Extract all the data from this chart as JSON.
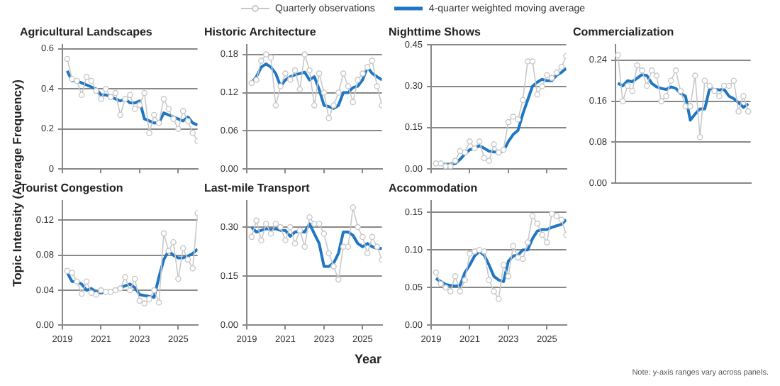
{
  "chart_data": [
    {
      "type": "line",
      "title": "Agricultural Landscapes",
      "ylabel": "Topic Intensity (Average Frequency)",
      "legend": "top",
      "grid": "y",
      "tick_labels": "y",
      "x": [
        2019.25,
        2019.5,
        2019.75,
        2020,
        2020.25,
        2020.5,
        2020.75,
        2021,
        2021.25,
        2021.5,
        2021.75,
        2022,
        2022.25,
        2022.5,
        2022.75,
        2023,
        2023.25,
        2023.5,
        2023.75,
        2024,
        2024.25,
        2024.5,
        2024.75,
        2025,
        2025.25,
        2025.5,
        2025.75,
        2026
      ],
      "xlim": [
        2019,
        2026
      ],
      "xticks": [
        2019,
        2021,
        2023,
        2025
      ],
      "ylim": [
        0,
        0.62
      ],
      "yticks": [
        0,
        0.2,
        0.4,
        0.6
      ],
      "series": [
        {
          "name": "Quarterly observations",
          "color": "#c8c8c8",
          "marker": "circle",
          "values": [
            0.55,
            0.45,
            0.44,
            0.37,
            0.46,
            0.44,
            0.39,
            0.35,
            0.4,
            0.36,
            0.38,
            0.27,
            0.35,
            0.37,
            0.3,
            0.32,
            0.38,
            0.18,
            0.27,
            0.23,
            0.35,
            0.3,
            0.25,
            0.2,
            0.29,
            0.24,
            0.18,
            0.14
          ]
        },
        {
          "name": "4-quarter weighted moving average",
          "color": "#1f77c4",
          "marker": "none",
          "values": [
            0.49,
            0.44,
            0.44,
            0.43,
            0.42,
            0.41,
            0.4,
            0.37,
            0.37,
            0.36,
            0.35,
            0.34,
            0.35,
            0.33,
            0.33,
            0.34,
            0.25,
            0.24,
            0.23,
            0.23,
            0.28,
            0.27,
            0.26,
            0.25,
            0.24,
            0.26,
            0.23,
            0.22
          ]
        }
      ]
    },
    {
      "type": "line",
      "title": "Historic Architecture",
      "grid": "y",
      "tick_labels": "y",
      "x": [
        2019.25,
        2019.5,
        2019.75,
        2020,
        2020.25,
        2020.5,
        2020.75,
        2021,
        2021.25,
        2021.5,
        2021.75,
        2022,
        2022.25,
        2022.5,
        2022.75,
        2023,
        2023.25,
        2023.5,
        2023.75,
        2024,
        2024.25,
        2024.5,
        2024.75,
        2025,
        2025.25,
        2025.5,
        2025.75,
        2026
      ],
      "xlim": [
        2019,
        2026
      ],
      "xticks": [
        2019,
        2021,
        2023,
        2025
      ],
      "ylim": [
        0,
        0.195
      ],
      "yticks": [
        {
          "value": 0,
          "label": "0.00"
        },
        {
          "value": 0.06,
          "label": "0.06"
        },
        {
          "value": 0.12,
          "label": "0.12"
        },
        {
          "value": 0.18,
          "label": "0.18"
        }
      ],
      "series": [
        {
          "color": "#c8c8c8",
          "marker": "circle",
          "values": [
            0.135,
            0.14,
            0.17,
            0.18,
            0.175,
            0.1,
            0.13,
            0.15,
            0.14,
            0.155,
            0.125,
            0.18,
            0.155,
            0.1,
            0.15,
            0.12,
            0.08,
            0.1,
            0.12,
            0.15,
            0.13,
            0.105,
            0.14,
            0.15,
            0.16,
            0.17,
            0.13,
            0.1
          ]
        },
        {
          "color": "#1f77c4",
          "marker": "none",
          "values": [
            0.135,
            0.145,
            0.16,
            0.165,
            0.16,
            0.15,
            0.13,
            0.14,
            0.145,
            0.148,
            0.15,
            0.152,
            0.14,
            0.145,
            0.125,
            0.1,
            0.098,
            0.095,
            0.1,
            0.12,
            0.12,
            0.128,
            0.13,
            0.14,
            0.16,
            0.15,
            0.145,
            0.14
          ]
        }
      ]
    },
    {
      "type": "line",
      "title": "Nighttime Shows",
      "grid": "y",
      "tick_labels": "y",
      "x": [
        2019.25,
        2019.5,
        2019.75,
        2020,
        2020.25,
        2020.5,
        2020.75,
        2021,
        2021.25,
        2021.5,
        2021.75,
        2022,
        2022.25,
        2022.5,
        2022.75,
        2023,
        2023.25,
        2023.5,
        2023.75,
        2024,
        2024.25,
        2024.5,
        2024.75,
        2025,
        2025.25,
        2025.5,
        2025.75,
        2026
      ],
      "xlim": [
        2019,
        2026
      ],
      "xticks": [
        2019,
        2021,
        2023,
        2025
      ],
      "ylim": [
        0,
        0.45
      ],
      "yticks": [
        {
          "value": 0,
          "label": "0.00"
        },
        {
          "value": 0.15,
          "label": "0.15"
        },
        {
          "value": 0.3,
          "label": "0.30"
        },
        {
          "value": 0.45,
          "label": "0.45"
        }
      ],
      "series": [
        {
          "color": "#c8c8c8",
          "marker": "circle",
          "values": [
            0.02,
            0.02,
            0.01,
            0.01,
            0.03,
            0.065,
            0.06,
            0.1,
            0.075,
            0.1,
            0.04,
            0.03,
            0.09,
            0.06,
            0.07,
            0.17,
            0.19,
            0.18,
            0.25,
            0.39,
            0.39,
            0.27,
            0.3,
            0.34,
            0.33,
            0.35,
            0.37,
            0.41
          ]
        },
        {
          "color": "#1f77c4",
          "marker": "none",
          "values": [
            0.02,
            0.018,
            0.017,
            0.018,
            0.02,
            0.035,
            0.055,
            0.07,
            0.075,
            0.085,
            0.075,
            0.065,
            0.062,
            0.06,
            0.065,
            0.1,
            0.125,
            0.14,
            0.2,
            0.25,
            0.3,
            0.315,
            0.325,
            0.32,
            0.32,
            0.34,
            0.35,
            0.365
          ]
        }
      ]
    },
    {
      "type": "line",
      "title": "Commercialization",
      "grid": "y",
      "tick_labels": "y",
      "categories": [
        null,
        null,
        null,
        null,
        null,
        null,
        null,
        null,
        null,
        null,
        null,
        null,
        null,
        null,
        null,
        null,
        null,
        null,
        null,
        null,
        null,
        null,
        null,
        null,
        null,
        null,
        null,
        null
      ],
      "ylim": [
        0,
        0.27
      ],
      "yticks": [
        {
          "value": 0,
          "label": "0.00"
        },
        {
          "value": 0.08,
          "label": "0.08"
        },
        {
          "value": 0.16,
          "label": "0.16"
        },
        {
          "value": 0.24,
          "label": "0.24"
        }
      ],
      "series": [
        {
          "color": "#c8c8c8",
          "marker": "circle",
          "values": [
            0.25,
            0.16,
            0.19,
            0.18,
            0.23,
            0.22,
            0.19,
            0.22,
            0.21,
            0.16,
            0.17,
            0.2,
            0.22,
            0.18,
            0.15,
            0.15,
            0.21,
            0.09,
            0.2,
            0.19,
            0.18,
            0.17,
            0.19,
            0.19,
            0.2,
            0.14,
            0.17,
            0.14
          ]
        },
        {
          "color": "#1f77c4",
          "marker": "none",
          "values": [
            0.195,
            0.19,
            0.2,
            0.198,
            0.205,
            0.212,
            0.21,
            0.195,
            0.188,
            0.185,
            0.183,
            0.188,
            0.185,
            0.175,
            0.17,
            0.123,
            0.135,
            0.145,
            0.145,
            0.185,
            0.183,
            0.182,
            0.183,
            0.17,
            0.165,
            0.157,
            0.148,
            0.155
          ]
        }
      ]
    },
    {
      "type": "line",
      "title": "Tourist Congestion",
      "grid": "y",
      "x": [
        2019.25,
        2019.5,
        2019.75,
        2020,
        2020.25,
        2020.5,
        2020.75,
        2021,
        2021.25,
        2021.5,
        2021.75,
        2022,
        2022.25,
        2022.5,
        2022.75,
        2023,
        2023.25,
        2023.5,
        2023.75,
        2024,
        2024.25,
        2024.5,
        2024.75,
        2025,
        2025.25,
        2025.5,
        2025.75,
        2026
      ],
      "xlim": [
        2019,
        2026
      ],
      "xticks": [
        2019,
        2021,
        2023,
        2025
      ],
      "ylim": [
        0,
        0.142
      ],
      "yticks": [
        {
          "value": 0,
          "label": "0.00"
        },
        {
          "value": 0.04,
          "label": "0.04"
        },
        {
          "value": 0.08,
          "label": "0.08"
        },
        {
          "value": 0.12,
          "label": "0.12"
        }
      ],
      "series": [
        {
          "color": "#c8c8c8",
          "marker": "circle",
          "values": [
            0.062,
            0.06,
            0.05,
            0.036,
            0.05,
            0.037,
            0.035,
            0.04,
            0.038,
            0.038,
            0.04,
            0.042,
            0.055,
            0.04,
            0.053,
            0.028,
            0.025,
            0.03,
            0.04,
            0.026,
            0.105,
            0.085,
            0.095,
            0.053,
            0.088,
            0.075,
            0.065,
            0.128
          ]
        },
        {
          "color": "#1f77c4",
          "marker": "none",
          "values": [
            0.06,
            0.05,
            0.05,
            0.047,
            0.04,
            0.042,
            0.038,
            0.037,
            0.038,
            0.039,
            0.04,
            0.043,
            0.045,
            0.047,
            0.043,
            0.035,
            0.034,
            0.033,
            0.032,
            0.055,
            0.075,
            0.085,
            0.08,
            0.077,
            0.077,
            0.079,
            0.082,
            0.087
          ]
        }
      ]
    },
    {
      "type": "line",
      "title": "Last-mile Transport",
      "xlabel": "Year",
      "grid": "y",
      "x": [
        2019.25,
        2019.5,
        2019.75,
        2020,
        2020.25,
        2020.5,
        2020.75,
        2021,
        2021.25,
        2021.5,
        2021.75,
        2022,
        2022.25,
        2022.5,
        2022.75,
        2023,
        2023.25,
        2023.5,
        2023.75,
        2024,
        2024.25,
        2024.5,
        2024.75,
        2025,
        2025.25,
        2025.5,
        2025.75,
        2026
      ],
      "xlim": [
        2019,
        2026
      ],
      "xticks": [
        2019,
        2021,
        2023,
        2025
      ],
      "ylim": [
        0,
        0.38
      ],
      "yticks": [
        {
          "value": 0,
          "label": "0.00"
        },
        {
          "value": 0.15,
          "label": "0.15"
        },
        {
          "value": 0.3,
          "label": "0.30"
        }
      ],
      "series": [
        {
          "color": "#c8c8c8",
          "marker": "circle",
          "values": [
            0.27,
            0.32,
            0.26,
            0.31,
            0.28,
            0.31,
            0.3,
            0.26,
            0.3,
            0.25,
            0.29,
            0.24,
            0.33,
            0.31,
            0.31,
            0.28,
            0.22,
            0.18,
            0.14,
            0.24,
            0.24,
            0.36,
            0.3,
            0.27,
            0.22,
            0.27,
            0.24,
            0.2
          ]
        },
        {
          "color": "#1f77c4",
          "marker": "none",
          "values": [
            0.3,
            0.285,
            0.29,
            0.295,
            0.293,
            0.295,
            0.29,
            0.29,
            0.272,
            0.285,
            0.287,
            0.285,
            0.31,
            0.28,
            0.25,
            0.18,
            0.18,
            0.19,
            0.22,
            0.285,
            0.285,
            0.275,
            0.25,
            0.24,
            0.25,
            0.24,
            0.235,
            0.235
          ]
        }
      ]
    },
    {
      "type": "line",
      "title": "Accommodation",
      "grid": "y",
      "annotations": [
        "Note: y-axis ranges vary across panels."
      ],
      "x": [
        2019.25,
        2019.5,
        2019.75,
        2020,
        2020.25,
        2020.5,
        2020.75,
        2021,
        2021.25,
        2021.5,
        2021.75,
        2022,
        2022.25,
        2022.5,
        2022.75,
        2023,
        2023.25,
        2023.5,
        2023.75,
        2024,
        2024.25,
        2024.5,
        2024.75,
        2025,
        2025.25,
        2025.5,
        2025.75,
        2026
      ],
      "xlim": [
        2019,
        2026
      ],
      "xticks": [
        2019,
        2021,
        2023,
        2025
      ],
      "ylim": [
        0,
        0.165
      ],
      "yticks": [
        {
          "value": 0,
          "label": "0.00"
        },
        {
          "value": 0.05,
          "label": "0.05"
        },
        {
          "value": 0.1,
          "label": "0.10"
        },
        {
          "value": 0.15,
          "label": "0.15"
        }
      ],
      "series": [
        {
          "color": "#c8c8c8",
          "marker": "circle",
          "values": [
            0.07,
            0.055,
            0.05,
            0.045,
            0.065,
            0.045,
            0.06,
            0.095,
            0.098,
            0.1,
            0.098,
            0.06,
            0.045,
            0.035,
            0.08,
            0.065,
            0.105,
            0.09,
            0.088,
            0.11,
            0.145,
            0.135,
            0.12,
            0.11,
            0.148,
            0.145,
            0.14,
            0.12
          ]
        },
        {
          "color": "#1f77c4",
          "marker": "none",
          "values": [
            0.062,
            0.058,
            0.054,
            0.053,
            0.052,
            0.053,
            0.07,
            0.08,
            0.092,
            0.098,
            0.093,
            0.08,
            0.065,
            0.06,
            0.058,
            0.085,
            0.092,
            0.093,
            0.1,
            0.1,
            0.115,
            0.125,
            0.127,
            0.127,
            0.13,
            0.132,
            0.134,
            0.14
          ]
        }
      ]
    }
  ]
}
